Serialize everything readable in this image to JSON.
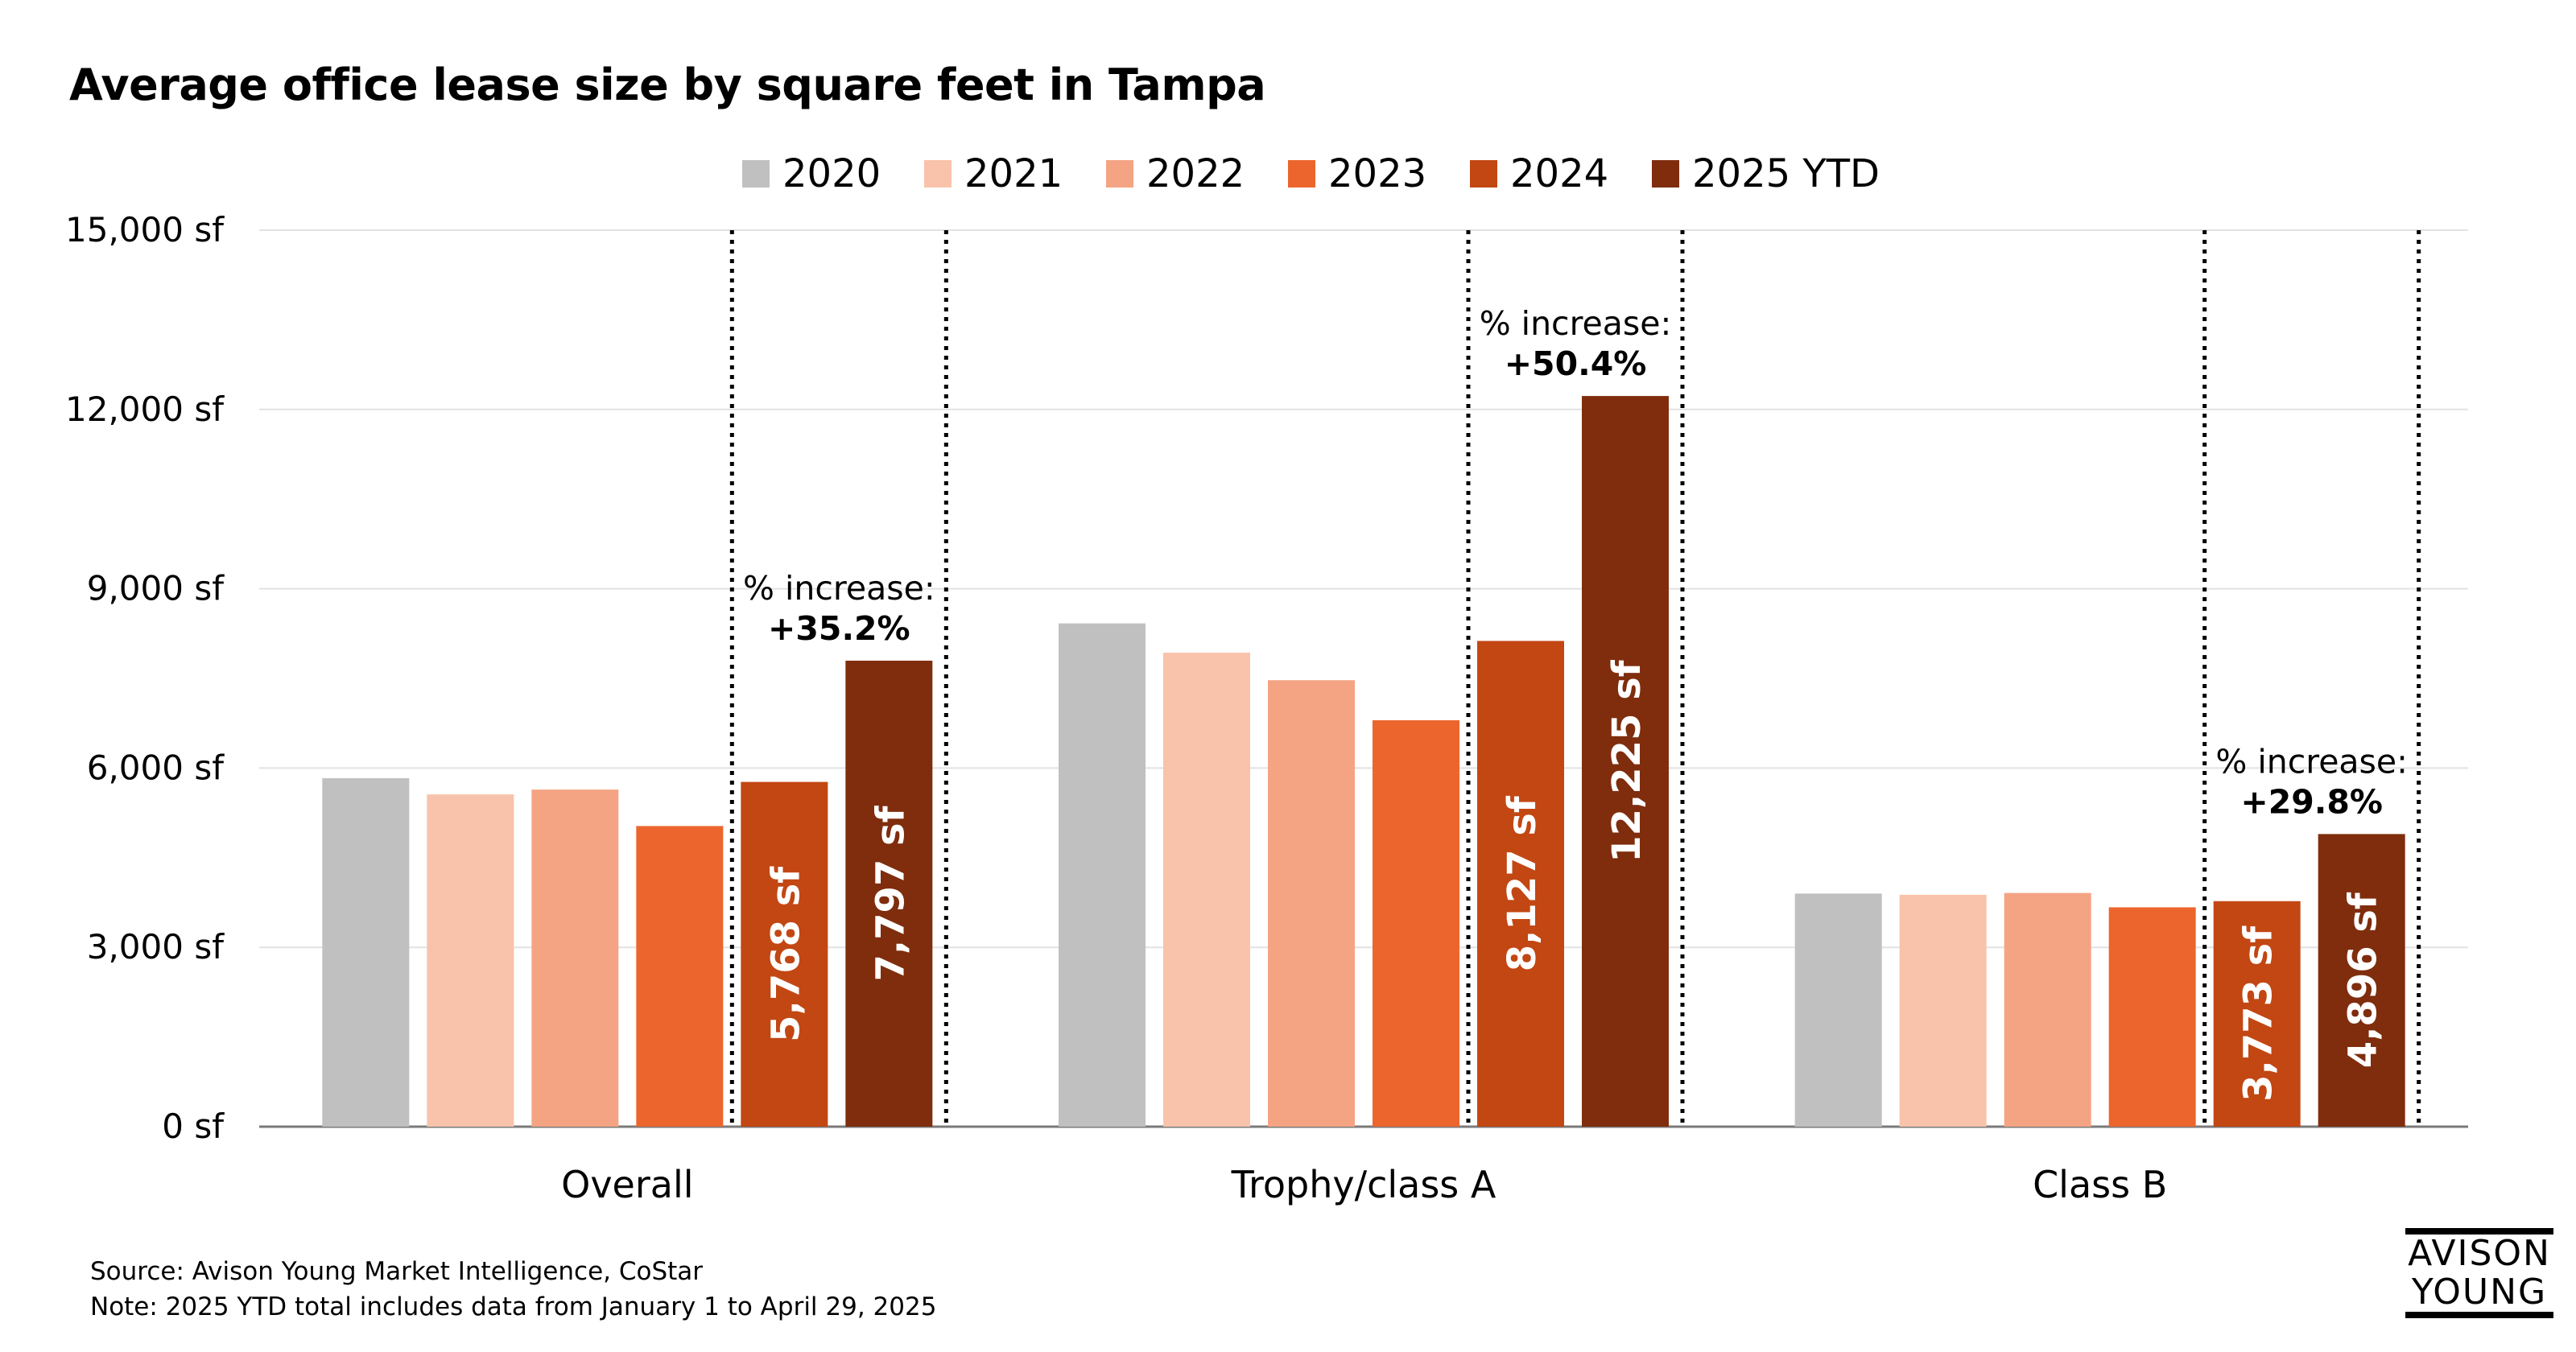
{
  "chart_data": {
    "type": "bar",
    "title": "Average office lease size by square feet in Tampa",
    "categories": [
      "Overall",
      "Trophy/class A",
      "Class B"
    ],
    "series": [
      {
        "name": "2020",
        "color": "#C0C0C0",
        "values": [
          5830,
          8420,
          3900
        ]
      },
      {
        "name": "2021",
        "color": "#F8C3AA",
        "values": [
          5560,
          7930,
          3880
        ]
      },
      {
        "name": "2022",
        "color": "#F4A483",
        "values": [
          5640,
          7470,
          3910
        ]
      },
      {
        "name": "2023",
        "color": "#EC652D",
        "values": [
          5030,
          6800,
          3670
        ]
      },
      {
        "name": "2024",
        "color": "#C24713",
        "values": [
          5768,
          8127,
          3773
        ]
      },
      {
        "name": "2025 YTD",
        "color": "#7F2D0D",
        "values": [
          7797,
          12225,
          4896
        ]
      }
    ],
    "data_labels": {
      "2024": [
        "5,768 sf",
        "8,127 sf",
        "3,773 sf"
      ],
      "2025 YTD": [
        "7,797 sf",
        "12,225 sf",
        "4,896 sf"
      ]
    },
    "annotations": [
      {
        "category": "Overall",
        "label": "% increase:",
        "value": "+35.2%"
      },
      {
        "category": "Trophy/class A",
        "label": "% increase:",
        "value": "+50.4%"
      },
      {
        "category": "Class B",
        "label": "% increase:",
        "value": "+29.8%"
      }
    ],
    "yticks": [
      0,
      3000,
      6000,
      9000,
      12000,
      15000
    ],
    "ytick_labels": [
      "0 sf",
      "3,000 sf",
      "6,000 sf",
      "9,000 sf",
      "12,000 sf",
      "15,000 sf"
    ],
    "ylim": [
      0,
      15000
    ],
    "xlabel": "",
    "ylabel": "",
    "grid": true,
    "legend_position": "top-center"
  },
  "source_note": "Source: Avison Young Market Intelligence, CoStar",
  "footnote": "Note: 2025 YTD total includes data from January 1 to April 29, 2025",
  "logo": {
    "line1": "AVISON",
    "line2": "YOUNG"
  }
}
